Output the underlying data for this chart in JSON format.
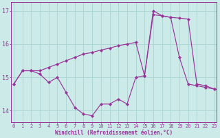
{
  "xlabel": "Windchill (Refroidissement éolien,°C)",
  "background_color": "#cceae8",
  "grid_color": "#aad4d2",
  "line_color": "#993399",
  "x": [
    0,
    1,
    2,
    3,
    4,
    5,
    6,
    7,
    8,
    9,
    10,
    11,
    12,
    13,
    14,
    15,
    16,
    17,
    18,
    19,
    20,
    21,
    22,
    23
  ],
  "series1": [
    14.8,
    15.2,
    15.2,
    15.1,
    14.85,
    15.0,
    14.55,
    14.1,
    13.9,
    13.85,
    14.2,
    14.2,
    14.35,
    14.2,
    15.0,
    15.05,
    17.0,
    16.85,
    16.8,
    15.6,
    14.8,
    14.75,
    14.7,
    14.65
  ],
  "series2": [
    14.8,
    15.2,
    15.2,
    15.2,
    15.3,
    15.4,
    15.5,
    15.6,
    15.7,
    15.75,
    15.82,
    15.88,
    15.95,
    16.0,
    16.05,
    15.05,
    16.88,
    16.85,
    16.8,
    16.78,
    16.75,
    14.8,
    14.75,
    14.65
  ],
  "ylim_min": 13.65,
  "ylim_max": 17.25,
  "yticks": [
    14,
    15,
    16,
    17
  ],
  "xlim_min": -0.3,
  "xlim_max": 23.3,
  "xticks": [
    0,
    1,
    2,
    3,
    4,
    5,
    6,
    7,
    8,
    9,
    10,
    11,
    12,
    13,
    14,
    15,
    16,
    17,
    18,
    19,
    20,
    21,
    22,
    23
  ],
  "tick_fontsize": 5,
  "xlabel_fontsize": 5.5,
  "ylabel_fontsize": 6,
  "linewidth": 0.85,
  "markersize": 2.2
}
